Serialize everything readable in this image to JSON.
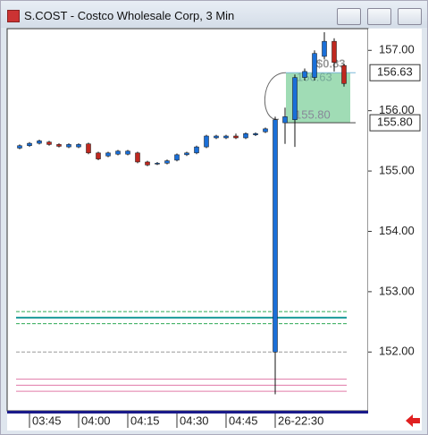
{
  "window_title": "S.COST - Costco Wholesale Corp, 3 Min",
  "chart_data": {
    "type": "candlestick",
    "up_color": "#1a6fd8",
    "down_color": "#c0281f",
    "categories": [
      null,
      "03:45",
      null,
      null,
      null,
      null,
      "04:00",
      null,
      null,
      null,
      null,
      "04:15",
      null,
      null,
      null,
      null,
      "04:30",
      null,
      null,
      null,
      null,
      "04:45",
      null,
      null,
      null,
      null,
      "26-22:30",
      null,
      null,
      null,
      null,
      null,
      null,
      null
    ],
    "open": [
      155.38,
      155.42,
      155.46,
      155.48,
      155.44,
      155.4,
      155.4,
      155.45,
      155.3,
      155.25,
      155.28,
      155.28,
      155.3,
      155.15,
      155.12,
      155.13,
      155.18,
      155.27,
      155.3,
      155.4,
      155.55,
      155.55,
      155.58,
      155.55,
      155.6,
      155.65,
      152.0,
      155.8,
      155.85,
      156.55,
      156.55,
      156.9,
      157.15,
      156.75
    ],
    "high": [
      155.44,
      155.48,
      155.52,
      155.5,
      155.46,
      155.46,
      155.46,
      155.47,
      155.32,
      155.32,
      155.35,
      155.35,
      155.32,
      155.17,
      155.15,
      155.19,
      155.29,
      155.32,
      155.42,
      155.6,
      155.6,
      155.6,
      155.62,
      155.64,
      155.64,
      155.72,
      155.9,
      156.05,
      156.6,
      156.7,
      157.0,
      157.3,
      157.2,
      156.78
    ],
    "low": [
      155.36,
      155.4,
      155.44,
      155.42,
      155.39,
      155.38,
      155.38,
      155.28,
      155.18,
      155.23,
      155.26,
      155.26,
      155.13,
      155.08,
      155.1,
      155.11,
      155.16,
      155.25,
      155.28,
      155.38,
      155.53,
      155.53,
      155.53,
      155.53,
      155.58,
      155.63,
      151.3,
      155.45,
      155.4,
      156.5,
      156.5,
      156.85,
      156.65,
      156.4
    ],
    "close": [
      155.42,
      155.46,
      155.5,
      155.44,
      155.41,
      155.44,
      155.44,
      155.3,
      155.2,
      155.3,
      155.33,
      155.33,
      155.15,
      155.1,
      155.13,
      155.17,
      155.27,
      155.3,
      155.4,
      155.58,
      155.58,
      155.58,
      155.55,
      155.62,
      155.62,
      155.7,
      155.85,
      155.9,
      156.55,
      156.65,
      156.95,
      157.15,
      156.8,
      156.45
    ],
    "ylim": [
      151.04,
      157.36
    ],
    "yticks": [
      {
        "value": 152,
        "label": "152.00"
      },
      {
        "value": 153,
        "label": "153.00"
      },
      {
        "value": 154,
        "label": "154.00"
      },
      {
        "value": 155,
        "label": "155.00"
      },
      {
        "value": 156,
        "label": "156.00"
      },
      {
        "value": 157,
        "label": "157.00"
      }
    ],
    "levels": [
      {
        "value": 152.67,
        "color": "#2eaa55",
        "dash": true
      },
      {
        "value": 152.57,
        "color": "#1a9a9a",
        "dash": false
      },
      {
        "value": 152.47,
        "color": "#2eaa55",
        "dash": true
      },
      {
        "value": 152.0,
        "color": "#999999",
        "dash": true
      },
      {
        "value": 151.55,
        "color": "#e07aa8",
        "dash": false
      },
      {
        "value": 151.45,
        "color": "#e07aa8",
        "dash": false
      },
      {
        "value": 151.35,
        "color": "#e07aa8",
        "dash": false
      }
    ],
    "position": {
      "entry": {
        "value": 155.8,
        "label": "155.80"
      },
      "target": {
        "value": 156.63,
        "label": "156.63"
      },
      "profit_label": "$0.83",
      "color": "#8fd6a8"
    }
  }
}
